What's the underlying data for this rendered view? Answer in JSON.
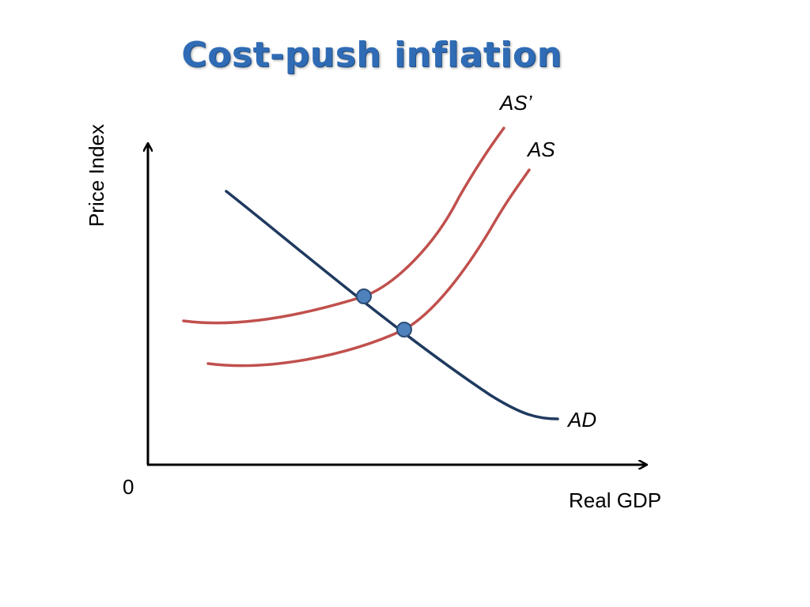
{
  "title": "Cost-push inflation",
  "axes": {
    "y_label": "Price Index",
    "x_label": "Real GDP",
    "origin_label": "0"
  },
  "curves": {
    "ad_label": "AD",
    "as_label": "AS",
    "as_shifted_label": "AS’"
  },
  "colors": {
    "title": "#2f6cb5",
    "ad_curve": "#1f3a5f",
    "as_curves": "#c0504d",
    "equilibrium_points": "#4f81bd",
    "axes": "#000000"
  },
  "equilibrium_points": [
    "initial equilibrium (AD ∩ AS)",
    "new equilibrium (AD ∩ AS’)"
  ]
}
